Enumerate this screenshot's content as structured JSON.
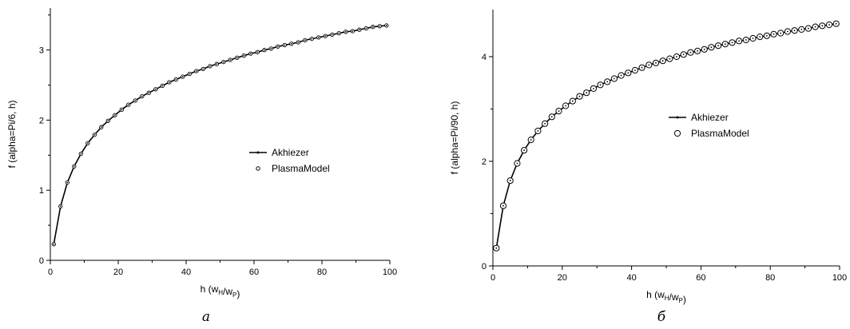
{
  "chart_data": [
    {
      "type": "line",
      "panel_label": "a",
      "xlabel": "h (w_H/w_P)",
      "ylabel": "f (alpha=Pi/6, h)",
      "xlim": [
        0,
        100
      ],
      "ylim": [
        0,
        3.6
      ],
      "xticks": [
        0,
        20,
        40,
        60,
        80,
        100
      ],
      "yticks": [
        0,
        1,
        2,
        3
      ],
      "grid": false,
      "legend_position": "right-middle",
      "series": [
        {
          "name": "Akhiezer",
          "style": "solid line with small dot markers",
          "color": "#000000"
        },
        {
          "name": "PlasmaModel",
          "style": "small open circles",
          "color": "#000000"
        }
      ],
      "x": [
        1,
        3,
        5,
        7,
        9,
        11,
        13,
        15,
        17,
        19,
        21,
        23,
        25,
        27,
        29,
        31,
        33,
        35,
        37,
        39,
        41,
        43,
        45,
        47,
        49,
        51,
        53,
        55,
        57,
        59,
        61,
        63,
        65,
        67,
        69,
        71,
        73,
        75,
        77,
        79,
        81,
        83,
        85,
        87,
        89,
        91,
        93,
        95,
        97,
        99
      ],
      "values": [
        0.23,
        0.77,
        1.11,
        1.34,
        1.52,
        1.67,
        1.79,
        1.9,
        1.99,
        2.07,
        2.15,
        2.22,
        2.28,
        2.34,
        2.39,
        2.44,
        2.49,
        2.54,
        2.58,
        2.62,
        2.66,
        2.7,
        2.73,
        2.77,
        2.8,
        2.83,
        2.86,
        2.89,
        2.92,
        2.95,
        2.97,
        3.0,
        3.02,
        3.05,
        3.07,
        3.09,
        3.11,
        3.14,
        3.16,
        3.18,
        3.2,
        3.22,
        3.24,
        3.26,
        3.27,
        3.29,
        3.31,
        3.33,
        3.34,
        3.35
      ]
    },
    {
      "type": "line",
      "panel_label": "б",
      "xlabel": "h (w_H/w_P)",
      "ylabel": "f (alpha=Pi/90, h)",
      "xlim": [
        0,
        100
      ],
      "ylim": [
        0,
        4.9
      ],
      "xticks": [
        0,
        20,
        40,
        60,
        80,
        100
      ],
      "yticks": [
        0,
        2,
        4
      ],
      "grid": false,
      "legend_position": "right-upper-middle",
      "series": [
        {
          "name": "Akhiezer",
          "style": "solid line with small dot markers",
          "color": "#000000"
        },
        {
          "name": "PlasmaModel",
          "style": "large open circles",
          "color": "#000000"
        }
      ],
      "x": [
        1,
        3,
        5,
        7,
        9,
        11,
        13,
        15,
        17,
        19,
        21,
        23,
        25,
        27,
        29,
        31,
        33,
        35,
        37,
        39,
        41,
        43,
        45,
        47,
        49,
        51,
        53,
        55,
        57,
        59,
        61,
        63,
        65,
        67,
        69,
        71,
        73,
        75,
        77,
        79,
        81,
        83,
        85,
        87,
        89,
        91,
        93,
        95,
        97,
        99
      ],
      "values": [
        0.34,
        1.15,
        1.63,
        1.96,
        2.21,
        2.41,
        2.58,
        2.72,
        2.85,
        2.96,
        3.06,
        3.15,
        3.24,
        3.31,
        3.39,
        3.46,
        3.52,
        3.58,
        3.64,
        3.69,
        3.74,
        3.79,
        3.84,
        3.88,
        3.92,
        3.96,
        4.0,
        4.04,
        4.08,
        4.11,
        4.14,
        4.18,
        4.21,
        4.24,
        4.27,
        4.3,
        4.32,
        4.35,
        4.38,
        4.4,
        4.43,
        4.45,
        4.48,
        4.5,
        4.52,
        4.54,
        4.57,
        4.59,
        4.61,
        4.63
      ]
    }
  ]
}
